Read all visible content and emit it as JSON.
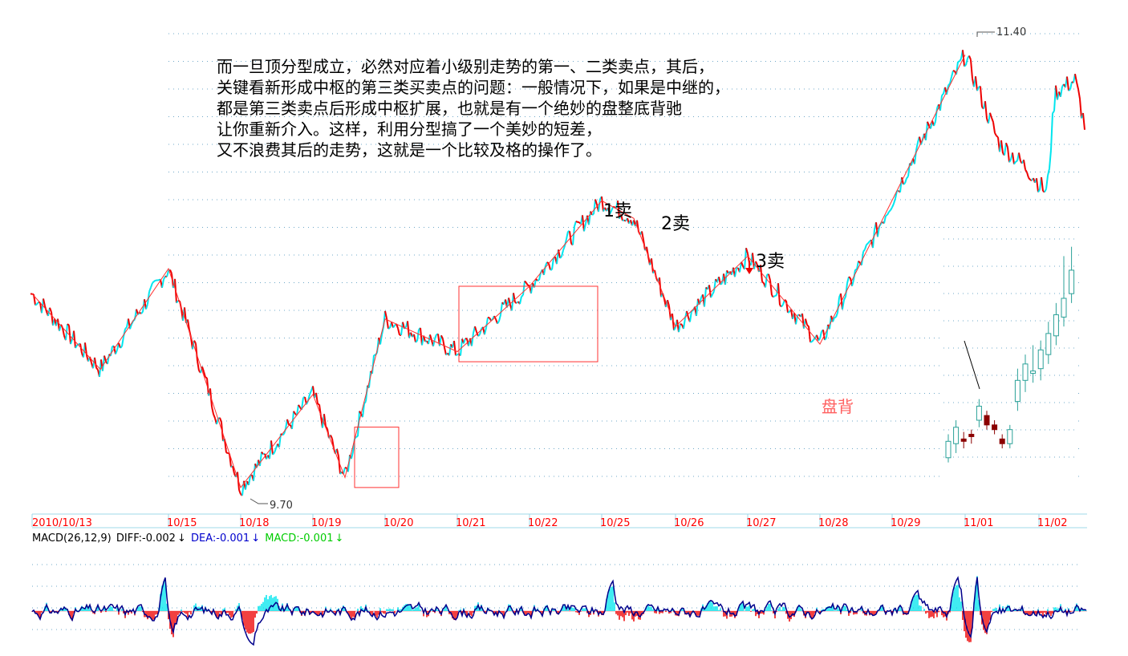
{
  "annotation": {
    "lines": [
      "而一旦顶分型成立，必然对应着小级别走势的第一、二类卖点，其后，",
      "关键看新形成中枢的第三类买卖点的问题：一般情况下，如果是中继的，",
      "都是第三类卖点后形成中枢扩展，也就是有一个绝妙的盘整底背驰",
      "让你重新介入。这样，利用分型搞了一个美妙的短差，",
      "又不浪费其后的走势，这就是一个比较及格的操作了。"
    ]
  },
  "macd_legend": {
    "name": "MACD(26,12,9)",
    "diff": "DIFF:-0.002",
    "dea": "DEA:-0.001",
    "macd": "MACD:-0.001",
    "arrow": "↓"
  },
  "colors": {
    "up": "#00e5ee",
    "down": "#ee0000",
    "pen": "#ff3030",
    "axis": "#ff0000",
    "dea": "#0000cc",
    "macd_green": "#00cc00",
    "grid": "#6fa8c8",
    "candle_up": "#2aa198",
    "candle_down": "#8b0000"
  },
  "chart_data": {
    "type": "line",
    "x_ticks": [
      "2010/10/13",
      "10/15",
      "10/18",
      "10/19",
      "10/20",
      "10/21",
      "10/22",
      "10/25",
      "10/26",
      "10/27",
      "10/28",
      "10/29",
      "11/01",
      "11/02"
    ],
    "price_labels": {
      "high": "11.40",
      "low": "9.70"
    },
    "marks": {
      "sell1": "1卖",
      "sell2": "2卖",
      "sell3": "3卖",
      "divergence": "盘背"
    },
    "pen_path": [
      [
        "2010/10/13",
        10.45
      ],
      [
        "10/14",
        10.15
      ],
      [
        "10/15",
        10.55
      ],
      [
        "10/18",
        9.68
      ],
      [
        "10/19",
        10.05
      ],
      [
        "10/19",
        9.72
      ],
      [
        "10/20",
        10.35
      ],
      [
        "10/21",
        10.22
      ],
      [
        "10/22",
        10.48
      ],
      [
        "10/25",
        10.82
      ],
      [
        "10/25",
        10.75
      ],
      [
        "10/26",
        10.32
      ],
      [
        "10/27",
        10.6
      ],
      [
        "10/28",
        10.25
      ],
      [
        "11/01",
        11.4
      ]
    ],
    "pivot_boxes": [
      {
        "from": "10/19",
        "to": "10/20",
        "low": 9.68,
        "high": 9.92
      },
      {
        "from": "10/21",
        "to": "10/22",
        "low": 10.18,
        "high": 10.48
      }
    ],
    "inset_candles": {
      "open": [
        9.72,
        9.78,
        9.8,
        9.82,
        9.88,
        9.9,
        9.86,
        9.8,
        9.78,
        9.96,
        10.05,
        10.08,
        10.1,
        10.16,
        10.24,
        10.32,
        10.42
      ],
      "close": [
        9.79,
        9.85,
        9.79,
        9.81,
        9.94,
        9.86,
        9.84,
        9.78,
        9.84,
        10.05,
        10.12,
        10.09,
        10.18,
        10.25,
        10.33,
        10.4,
        10.52
      ],
      "high": [
        9.82,
        9.88,
        9.83,
        9.84,
        9.97,
        9.92,
        9.88,
        9.82,
        9.86,
        10.1,
        10.16,
        10.2,
        10.22,
        10.3,
        10.38,
        10.58,
        10.62
      ],
      "low": [
        9.7,
        9.74,
        9.76,
        9.78,
        9.85,
        9.84,
        9.82,
        9.76,
        9.76,
        9.92,
        10.0,
        10.04,
        10.05,
        10.12,
        10.2,
        10.28,
        10.38
      ]
    }
  }
}
